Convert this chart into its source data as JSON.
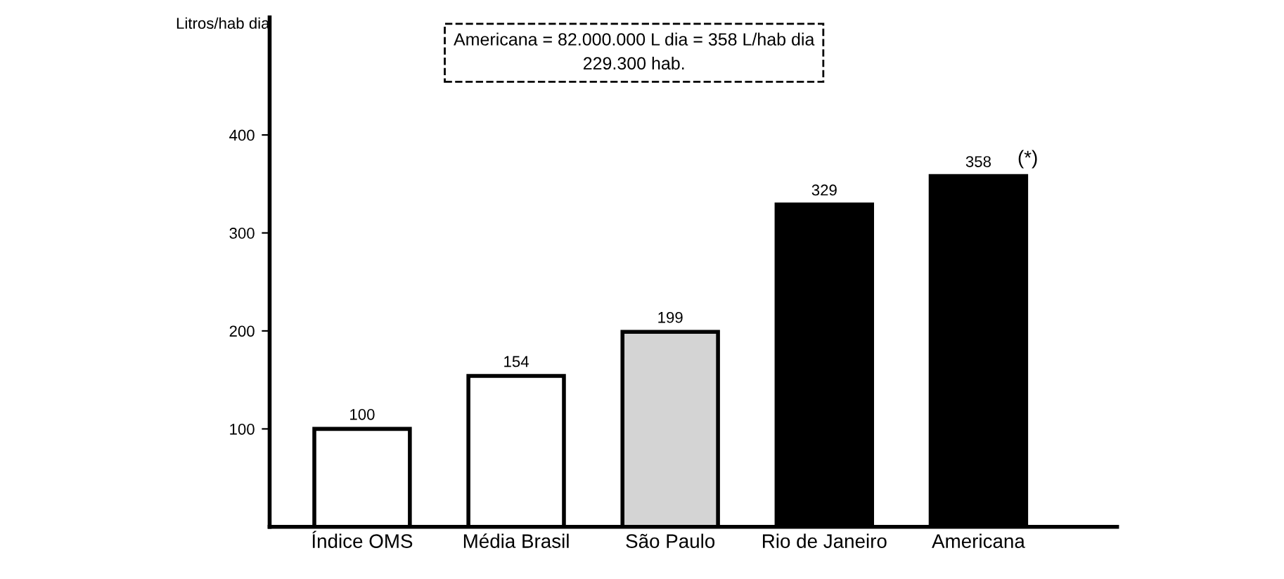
{
  "chart_data": {
    "type": "bar",
    "ylabel": "Litros/hab dia",
    "categories": [
      "Índice OMS",
      "Média Brasil",
      "São Paulo",
      "Rio de Janeiro",
      "Americana"
    ],
    "values": [
      100,
      154,
      199,
      329,
      358
    ],
    "colors": [
      "#ffffff",
      "#ffffff",
      "#d4d4d4",
      "#000000",
      "#000000"
    ],
    "ylim": [
      0,
      520
    ],
    "yticks": [
      100,
      200,
      300,
      400
    ],
    "grid": false,
    "data_labels": true,
    "annotations": [
      "Americana = 82.000.000 L dia = 358 L/hab dia\n229.300 hab.",
      {
        "text": "(*)",
        "x": "Americana",
        "y": 358
      }
    ]
  }
}
